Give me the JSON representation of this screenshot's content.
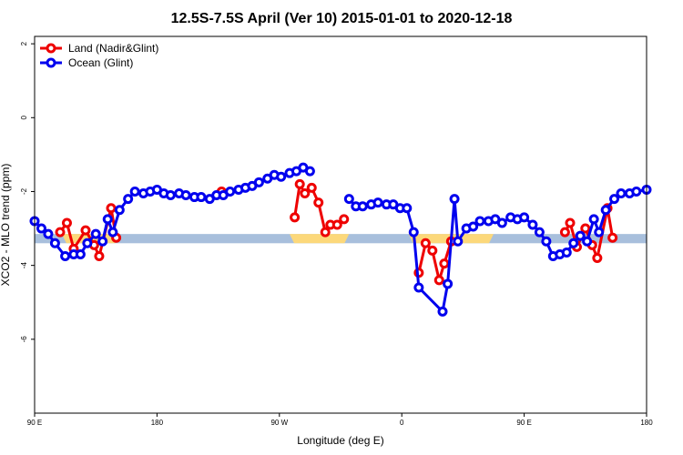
{
  "chart_data": {
    "type": "line",
    "title": "12.5S-7.5S April (Ver 10)   2015-01-01 to 2020-12-18",
    "xlabel": "Longitude (deg E)",
    "ylabel": "XCO2 - MLO trend (ppm)",
    "xlim": [
      90,
      450
    ],
    "ylim": [
      -8,
      2.2
    ],
    "x_ticks": [
      {
        "value": 90,
        "label": "90 E"
      },
      {
        "value": 162,
        "label": "180"
      },
      {
        "value": 234,
        "label": "90 W"
      },
      {
        "value": 306,
        "label": "0"
      },
      {
        "value": 378,
        "label": "90 E"
      },
      {
        "value": 450,
        "label": "180"
      }
    ],
    "y_ticks": [
      {
        "value": 2,
        "label": "2"
      },
      {
        "value": 0,
        "label": "0"
      },
      {
        "value": -2,
        "label": "-2"
      },
      {
        "value": -4,
        "label": "-4"
      },
      {
        "value": -6,
        "label": "-6"
      }
    ],
    "band": {
      "y_range": [
        -3.4,
        -3.15
      ],
      "color": "#a8bfdc",
      "highlight_color": "#fcd87a",
      "highlight_ranges": [
        [
          106,
          140
        ],
        [
          240,
          275
        ],
        [
          310,
          360
        ]
      ]
    },
    "legend_position": "top-left",
    "series": [
      {
        "name": "Land (Nadir&Glint)",
        "color": "#ee0000",
        "segments": [
          [
            [
              105,
              -3.1
            ],
            [
              109,
              -2.85
            ],
            [
              113,
              -3.55
            ],
            [
              120,
              -3.05
            ],
            [
              125,
              -3.45
            ],
            [
              128,
              -3.75
            ],
            [
              135,
              -2.45
            ],
            [
              138,
              -3.25
            ]
          ],
          [
            [
              200,
              -2.0
            ]
          ],
          [
            [
              243,
              -2.7
            ],
            [
              246,
              -1.8
            ],
            [
              249,
              -2.05
            ],
            [
              253,
              -1.9
            ],
            [
              257,
              -2.3
            ],
            [
              261,
              -3.1
            ],
            [
              264,
              -2.9
            ],
            [
              268,
              -2.9
            ],
            [
              272,
              -2.75
            ]
          ],
          [
            [
              316,
              -4.2
            ],
            [
              320,
              -3.4
            ],
            [
              324,
              -3.6
            ],
            [
              328,
              -4.4
            ],
            [
              331,
              -3.95
            ],
            [
              335,
              -3.35
            ]
          ],
          [
            [
              402,
              -3.1
            ],
            [
              405,
              -2.85
            ],
            [
              409,
              -3.5
            ],
            [
              414,
              -3.0
            ],
            [
              418,
              -3.45
            ],
            [
              421,
              -3.8
            ],
            [
              427,
              -2.45
            ],
            [
              430,
              -3.25
            ]
          ]
        ]
      },
      {
        "name": "Ocean (Glint)",
        "color": "#0000ee",
        "segments": [
          [
            [
              90,
              -2.8
            ],
            [
              94,
              -3.0
            ],
            [
              98,
              -3.15
            ],
            [
              102,
              -3.4
            ],
            [
              108,
              -3.75
            ],
            [
              113,
              -3.7
            ],
            [
              117,
              -3.7
            ],
            [
              121,
              -3.4
            ],
            [
              126,
              -3.15
            ],
            [
              130,
              -3.35
            ],
            [
              133,
              -2.75
            ],
            [
              136,
              -3.1
            ],
            [
              140,
              -2.5
            ],
            [
              145,
              -2.2
            ],
            [
              149,
              -2.0
            ],
            [
              154,
              -2.05
            ],
            [
              158,
              -2.0
            ],
            [
              162,
              -1.95
            ],
            [
              166,
              -2.05
            ],
            [
              170,
              -2.1
            ],
            [
              175,
              -2.05
            ],
            [
              179,
              -2.1
            ],
            [
              184,
              -2.15
            ],
            [
              188,
              -2.15
            ],
            [
              193,
              -2.2
            ],
            [
              197,
              -2.1
            ],
            [
              201,
              -2.1
            ],
            [
              205,
              -2.0
            ],
            [
              210,
              -1.95
            ],
            [
              214,
              -1.9
            ],
            [
              218,
              -1.85
            ],
            [
              222,
              -1.75
            ],
            [
              227,
              -1.65
            ],
            [
              231,
              -1.55
            ],
            [
              235,
              -1.6
            ],
            [
              240,
              -1.5
            ],
            [
              244,
              -1.45
            ],
            [
              248,
              -1.35
            ],
            [
              252,
              -1.45
            ]
          ],
          [
            [
              275,
              -2.2
            ],
            [
              279,
              -2.4
            ],
            [
              283,
              -2.4
            ],
            [
              288,
              -2.35
            ],
            [
              292,
              -2.3
            ],
            [
              297,
              -2.35
            ],
            [
              301,
              -2.35
            ],
            [
              305,
              -2.45
            ],
            [
              309,
              -2.45
            ],
            [
              313,
              -3.1
            ],
            [
              316,
              -4.6
            ],
            [
              330,
              -5.25
            ],
            [
              333,
              -4.5
            ],
            [
              337,
              -2.2
            ],
            [
              339,
              -3.35
            ],
            [
              344,
              -3.0
            ],
            [
              348,
              -2.95
            ],
            [
              352,
              -2.8
            ],
            [
              357,
              -2.8
            ],
            [
              361,
              -2.75
            ],
            [
              365,
              -2.85
            ],
            [
              370,
              -2.7
            ],
            [
              374,
              -2.75
            ],
            [
              378,
              -2.7
            ],
            [
              383,
              -2.9
            ],
            [
              387,
              -3.1
            ],
            [
              391,
              -3.35
            ],
            [
              395,
              -3.75
            ],
            [
              399,
              -3.7
            ],
            [
              403,
              -3.65
            ],
            [
              407,
              -3.4
            ],
            [
              411,
              -3.2
            ],
            [
              415,
              -3.35
            ],
            [
              419,
              -2.75
            ],
            [
              422,
              -3.1
            ],
            [
              426,
              -2.5
            ],
            [
              431,
              -2.2
            ],
            [
              435,
              -2.05
            ],
            [
              440,
              -2.05
            ],
            [
              444,
              -2.0
            ],
            [
              450,
              -1.95
            ]
          ]
        ]
      }
    ]
  }
}
